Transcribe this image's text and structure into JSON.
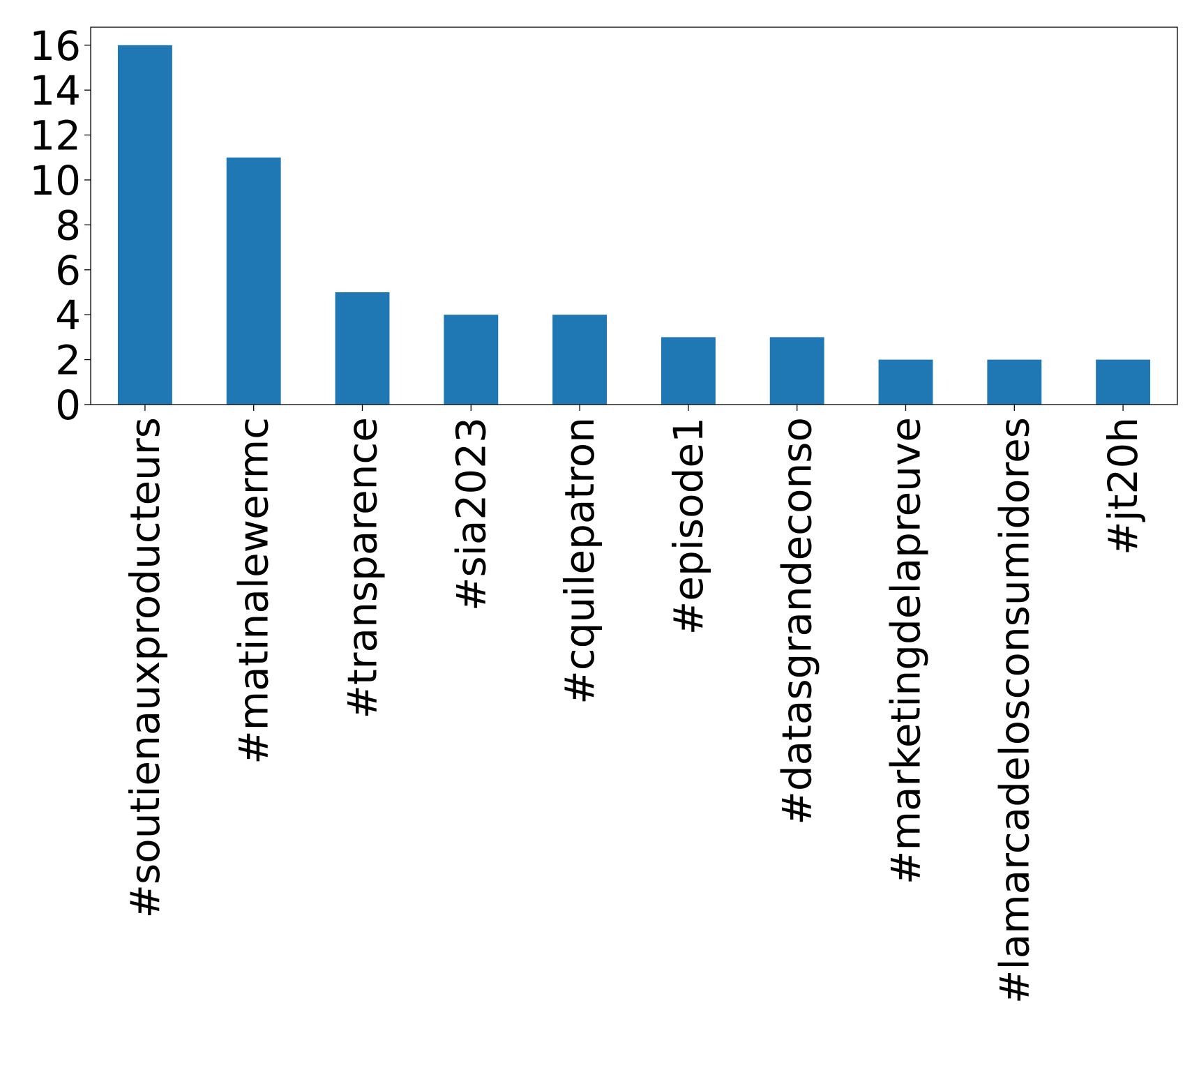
{
  "colors": {
    "bar": "#1f77b4",
    "axis": "#000000",
    "background": "#ffffff"
  },
  "chart_data": {
    "type": "bar",
    "title": "",
    "xlabel": "",
    "ylabel": "",
    "categories": [
      "#soutienauxproducteurs",
      "#matinalewermc",
      "#transparence",
      "#sia2023",
      "#cquilepatron",
      "#episode1",
      "#datasgrandeconso",
      "#marketingdelapreuve",
      "#lamarcadelosconsumidores",
      "#jt20h"
    ],
    "values": [
      16,
      11,
      5,
      4,
      4,
      3,
      3,
      2,
      2,
      2
    ],
    "ylim": [
      0,
      16.8
    ],
    "yticks": [
      0,
      2,
      4,
      6,
      8,
      10,
      12,
      14,
      16
    ],
    "ytick_labels": [
      "0",
      "2",
      "4",
      "6",
      "8",
      "10",
      "12",
      "14",
      "16"
    ],
    "grid": false,
    "legend": "none",
    "x_tick_rotation": "vertical"
  }
}
